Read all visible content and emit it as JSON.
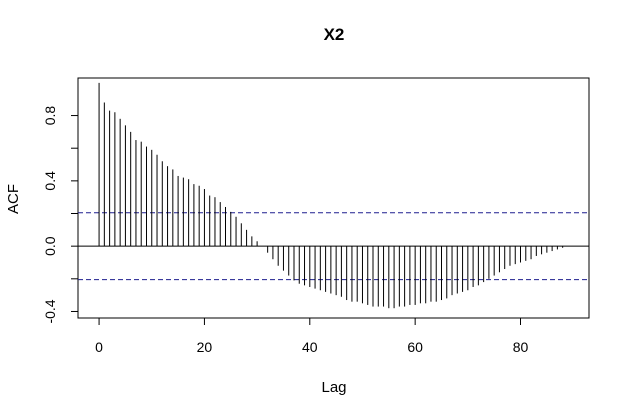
{
  "chart_data": {
    "type": "bar",
    "title": "X2",
    "xlabel": "Lag",
    "ylabel": "ACF",
    "xlim": [
      -4,
      93
    ],
    "ylim": [
      -0.44,
      1.03
    ],
    "x_ticks": [
      0,
      20,
      40,
      60,
      80
    ],
    "x_tick_labels": [
      "0",
      "20",
      "40",
      "60",
      "80"
    ],
    "y_ticks": [
      -0.4,
      0.0,
      0.4,
      0.8
    ],
    "y_tick_labels": [
      "-0.4",
      "0.0",
      "0.4",
      "0.8"
    ],
    "y_ticks_minor": [
      -0.2,
      0.2,
      0.6
    ],
    "confidence_bound": 0.205,
    "grid": false,
    "series": [
      {
        "lags": [
          0,
          1,
          2,
          3,
          4,
          5,
          6,
          7,
          8,
          9,
          10,
          11,
          12,
          13,
          14,
          15,
          16,
          17,
          18,
          19,
          20,
          21,
          22,
          23,
          24,
          25,
          26,
          27,
          28,
          29,
          30,
          31,
          32,
          33,
          34,
          35,
          36,
          37,
          38,
          39,
          40,
          41,
          42,
          43,
          44,
          45,
          46,
          47,
          48,
          49,
          50,
          51,
          52,
          53,
          54,
          55,
          56,
          57,
          58,
          59,
          60,
          61,
          62,
          63,
          64,
          65,
          66,
          67,
          68,
          69,
          70,
          71,
          72,
          73,
          74,
          75,
          76,
          77,
          78,
          79,
          80,
          81,
          82,
          83,
          84,
          85,
          86,
          87,
          88,
          89
        ],
        "values": [
          1.0,
          0.88,
          0.83,
          0.82,
          0.78,
          0.74,
          0.7,
          0.65,
          0.64,
          0.61,
          0.59,
          0.56,
          0.52,
          0.49,
          0.47,
          0.43,
          0.42,
          0.41,
          0.38,
          0.37,
          0.35,
          0.31,
          0.3,
          0.27,
          0.24,
          0.21,
          0.18,
          0.14,
          0.1,
          0.06,
          0.03,
          0.0,
          -0.04,
          -0.08,
          -0.12,
          -0.15,
          -0.18,
          -0.21,
          -0.23,
          -0.24,
          -0.25,
          -0.26,
          -0.27,
          -0.28,
          -0.29,
          -0.3,
          -0.31,
          -0.33,
          -0.34,
          -0.34,
          -0.35,
          -0.36,
          -0.37,
          -0.37,
          -0.37,
          -0.38,
          -0.38,
          -0.37,
          -0.37,
          -0.36,
          -0.36,
          -0.35,
          -0.35,
          -0.34,
          -0.34,
          -0.33,
          -0.32,
          -0.3,
          -0.29,
          -0.28,
          -0.27,
          -0.25,
          -0.24,
          -0.22,
          -0.2,
          -0.18,
          -0.16,
          -0.14,
          -0.12,
          -0.11,
          -0.1,
          -0.09,
          -0.08,
          -0.06,
          -0.05,
          -0.04,
          -0.03,
          -0.02,
          -0.01,
          0.0
        ]
      }
    ]
  },
  "colors": {
    "bars": "#000000",
    "confidence_line": "#1f1f8f",
    "zero_line": "#000000",
    "frame": "#000000"
  }
}
